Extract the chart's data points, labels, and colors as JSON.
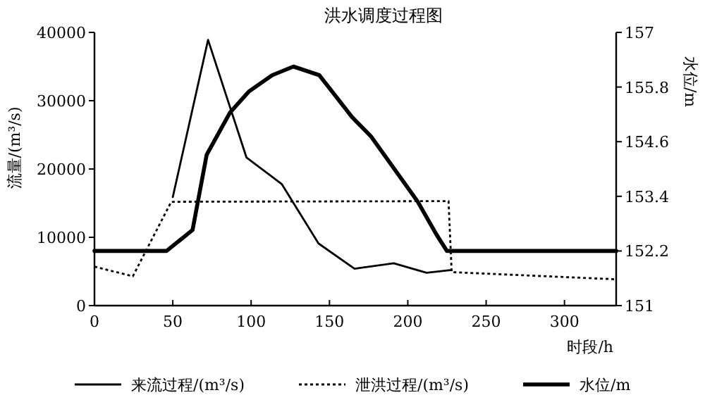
{
  "chart_data": {
    "type": "line",
    "title": "洪水调度过程图",
    "xlabel": "时段/h",
    "ylabel": "流量/(m³/s)",
    "y2label": "水位/m",
    "xlim": [
      0,
      333
    ],
    "xticks": [
      0,
      50,
      100,
      150,
      200,
      250,
      300
    ],
    "ylim": [
      0,
      40000
    ],
    "yticks": [
      0,
      10000,
      20000,
      30000,
      40000
    ],
    "y2lim": [
      151,
      157
    ],
    "y2ticks": [
      151,
      152.2,
      153.4,
      154.6,
      155.8,
      157
    ],
    "legend": "bottom",
    "series": [
      {
        "name": "来流过程/(m³/s)",
        "color": "#000000",
        "line_style": "solid",
        "x": [
          50,
          72.5,
          97,
          119.5,
          143,
          166,
          191,
          212,
          227
        ],
        "values": [
          15900,
          38900,
          21700,
          17800,
          9100,
          5400,
          6200,
          4800,
          5200
        ]
      },
      {
        "name": "泄洪过程/(m³/s)",
        "color": "#000000",
        "line_style": "dotted",
        "x": [
          0,
          24.5,
          49,
          226,
          228,
          333
        ],
        "values": [
          5700,
          4300,
          15200,
          15300,
          4900,
          3850
        ]
      },
      {
        "name": "水位/m",
        "color": "#000000",
        "line_style": "solid",
        "axis": "y2",
        "x": [
          0,
          46,
          62.6,
          71.6,
          86.5,
          98.5,
          113.5,
          127,
          143.5,
          164.4,
          176.4,
          206.4,
          218.3,
          225,
          333
        ],
        "values": [
          152.2,
          152.2,
          152.66,
          154.31,
          155.24,
          155.7,
          156.06,
          156.25,
          156.06,
          155.14,
          154.72,
          153.28,
          152.56,
          152.2,
          152.2
        ]
      }
    ]
  }
}
